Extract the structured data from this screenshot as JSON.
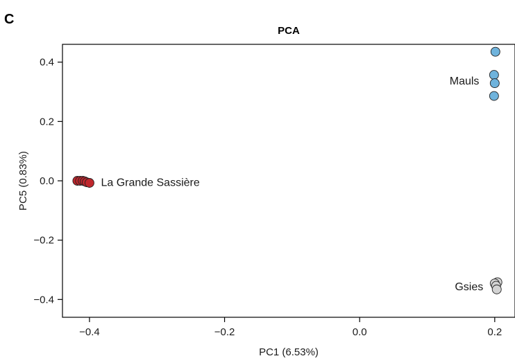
{
  "panel_letter": "C",
  "chart_data": {
    "type": "scatter",
    "title": "PCA",
    "xlabel": "PC1 (6.53%)",
    "ylabel": "PC5 (0.83%)",
    "xlim": [
      -0.44,
      0.23
    ],
    "ylim": [
      -0.46,
      0.46
    ],
    "x_ticks": [
      {
        "value": -0.4,
        "label": "−0.4"
      },
      {
        "value": -0.2,
        "label": "−0.2"
      },
      {
        "value": 0.0,
        "label": "0.0"
      },
      {
        "value": 0.2,
        "label": "0.2"
      }
    ],
    "y_ticks": [
      {
        "value": -0.4,
        "label": "−0.4"
      },
      {
        "value": -0.2,
        "label": "−0.2"
      },
      {
        "value": 0.0,
        "label": "0.0"
      },
      {
        "value": 0.2,
        "label": "0.2"
      },
      {
        "value": 0.4,
        "label": "0.4"
      }
    ],
    "grid": false,
    "legend": "none",
    "groups": [
      {
        "color": "#c0272d",
        "points": [
          {
            "x": -0.418,
            "y": 0.0
          },
          {
            "x": -0.414,
            "y": 0.0
          },
          {
            "x": -0.41,
            "y": 0.0
          },
          {
            "x": -0.407,
            "y": -0.002
          },
          {
            "x": -0.404,
            "y": -0.005
          },
          {
            "x": -0.4,
            "y": -0.007
          }
        ]
      },
      {
        "color": "#6fb3dc",
        "points": [
          {
            "x": 0.201,
            "y": 0.435
          },
          {
            "x": 0.199,
            "y": 0.357
          },
          {
            "x": 0.2,
            "y": 0.329
          },
          {
            "x": 0.199,
            "y": 0.286
          }
        ]
      },
      {
        "color": "#d3d3d3",
        "points": [
          {
            "x": 0.204,
            "y": -0.342
          },
          {
            "x": 0.2,
            "y": -0.346
          },
          {
            "x": 0.202,
            "y": -0.354
          },
          {
            "x": 0.203,
            "y": -0.366
          }
        ]
      }
    ],
    "annotations": [
      {
        "text": "La Grande Sassière",
        "x": -0.383,
        "y": -0.003,
        "anchor": "start"
      },
      {
        "text": "Mauls",
        "x": 0.177,
        "y": 0.338,
        "anchor": "end"
      },
      {
        "text": "Gsies",
        "x": 0.183,
        "y": -0.355,
        "anchor": "end"
      }
    ]
  }
}
